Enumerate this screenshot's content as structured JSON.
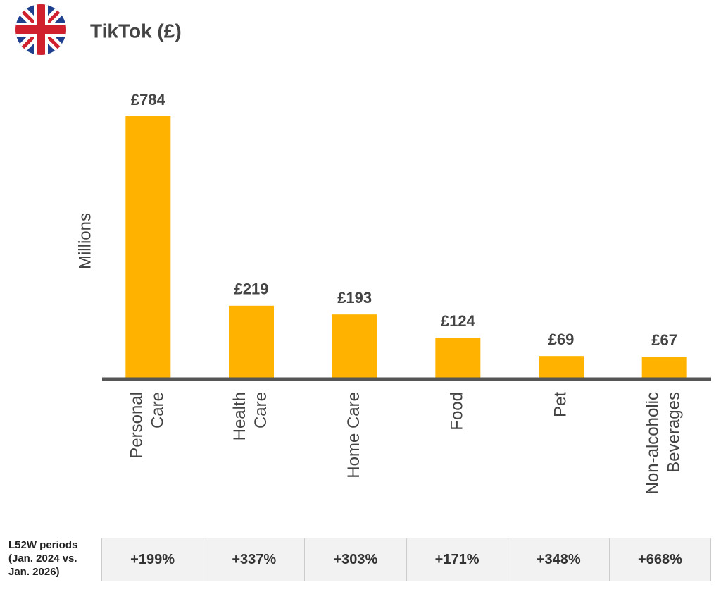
{
  "chart_data": {
    "type": "bar",
    "title": "TikTok (£)",
    "y_label": "Millions",
    "categories": [
      "Personal Care",
      "Health Care",
      "Home Care",
      "Food",
      "Pet",
      "Non-alcoholic Beverages"
    ],
    "values": [
      784,
      219,
      193,
      124,
      69,
      67
    ],
    "value_labels": [
      "£784",
      "£219",
      "£193",
      "£124",
      "£69",
      "£67"
    ],
    "color": "#ffb300",
    "ylim": [
      0,
      800
    ]
  },
  "table": {
    "row_label": "L52W periods (Jan. 2024 vs. Jan. 2026)",
    "cells": [
      "+199%",
      "+337%",
      "+303%",
      "+171%",
      "+348%",
      "+668%"
    ]
  }
}
